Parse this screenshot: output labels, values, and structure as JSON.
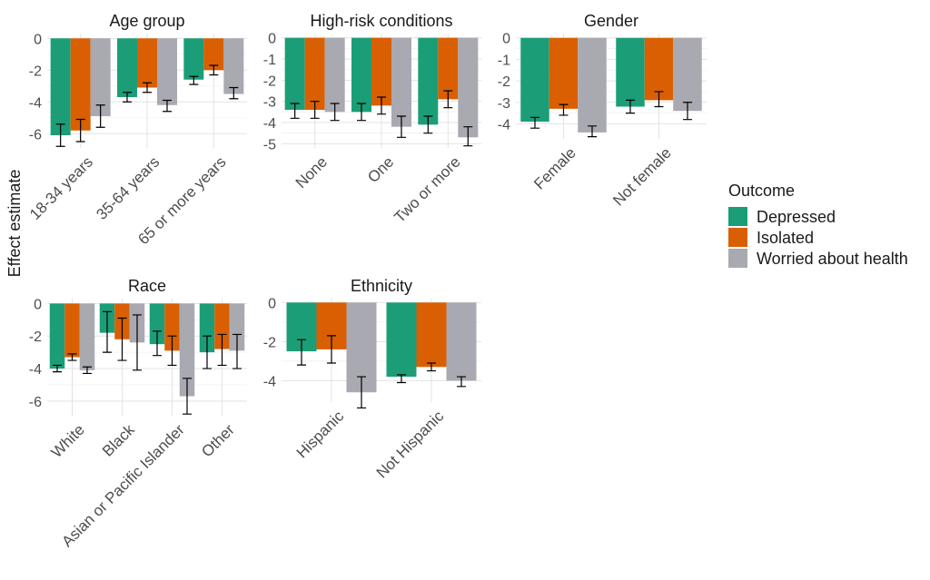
{
  "ylabel": "Effect estimate",
  "legend": {
    "title": "Outcome",
    "position": "right"
  },
  "colors": {
    "Depressed": "#1b9e77",
    "Isolated": "#d95f02",
    "Worried about health": "#a9a9b1"
  },
  "chart_data": [
    {
      "type": "bar",
      "title": "Age group",
      "categories": [
        "18-34 years",
        "35-64 years",
        "65 or more years"
      ],
      "ylim": [
        -6.9,
        0.3
      ],
      "yticks": [
        0,
        -2,
        -4,
        -6
      ],
      "series": [
        {
          "name": "Depressed",
          "values": [
            -6.1,
            -3.7,
            -2.6
          ],
          "err_low": [
            -6.8,
            -4.0,
            -2.9
          ],
          "err_high": [
            -5.4,
            -3.4,
            -2.4
          ]
        },
        {
          "name": "Isolated",
          "values": [
            -5.8,
            -3.1,
            -2.0
          ],
          "err_low": [
            -6.5,
            -3.4,
            -2.3
          ],
          "err_high": [
            -5.1,
            -2.8,
            -1.7
          ]
        },
        {
          "name": "Worried about health",
          "values": [
            -4.9,
            -4.2,
            -3.5
          ],
          "err_low": [
            -5.6,
            -4.6,
            -3.8
          ],
          "err_high": [
            -4.2,
            -3.9,
            -3.1
          ]
        }
      ]
    },
    {
      "type": "bar",
      "title": "High-risk conditions",
      "categories": [
        "None",
        "One",
        "Two or more"
      ],
      "ylim": [
        -5.2,
        0.2
      ],
      "yticks": [
        0,
        -1,
        -2,
        -3,
        -4,
        -5
      ],
      "series": [
        {
          "name": "Depressed",
          "values": [
            -3.4,
            -3.5,
            -4.1
          ],
          "err_low": [
            -3.8,
            -3.9,
            -4.5
          ],
          "err_high": [
            -3.1,
            -3.1,
            -3.7
          ]
        },
        {
          "name": "Isolated",
          "values": [
            -3.4,
            -3.2,
            -2.9
          ],
          "err_low": [
            -3.8,
            -3.6,
            -3.3
          ],
          "err_high": [
            -3.0,
            -2.8,
            -2.5
          ]
        },
        {
          "name": "Worried about health",
          "values": [
            -3.5,
            -4.2,
            -4.7
          ],
          "err_low": [
            -3.9,
            -4.7,
            -5.1
          ],
          "err_high": [
            -3.1,
            -3.7,
            -4.2
          ]
        }
      ]
    },
    {
      "type": "bar",
      "title": "Gender",
      "categories": [
        "Female",
        "Not female"
      ],
      "ylim": [
        -4.7,
        0.2
      ],
      "yticks": [
        0,
        -1,
        -2,
        -3,
        -4
      ],
      "series": [
        {
          "name": "Depressed",
          "values": [
            -3.9,
            -3.2
          ],
          "err_low": [
            -4.2,
            -3.5
          ],
          "err_high": [
            -3.7,
            -2.9
          ]
        },
        {
          "name": "Isolated",
          "values": [
            -3.3,
            -2.9
          ],
          "err_low": [
            -3.6,
            -3.2
          ],
          "err_high": [
            -3.1,
            -2.5
          ]
        },
        {
          "name": "Worried about health",
          "values": [
            -4.4,
            -3.4
          ],
          "err_low": [
            -4.6,
            -3.8
          ],
          "err_high": [
            -4.1,
            -3.0
          ]
        }
      ]
    },
    {
      "type": "bar",
      "title": "Race",
      "categories": [
        "White",
        "Black",
        "Asian or Pacific Islander",
        "Other"
      ],
      "ylim": [
        -6.9,
        0.3
      ],
      "yticks": [
        0,
        -2,
        -4,
        -6
      ],
      "series": [
        {
          "name": "Depressed",
          "values": [
            -4.0,
            -1.8,
            -2.5,
            -3.0
          ],
          "err_low": [
            -4.2,
            -3.0,
            -3.2,
            -4.0
          ],
          "err_high": [
            -3.8,
            -0.5,
            -1.7,
            -2.0
          ]
        },
        {
          "name": "Isolated",
          "values": [
            -3.3,
            -2.2,
            -2.9,
            -2.8
          ],
          "err_low": [
            -3.5,
            -3.5,
            -3.8,
            -3.8
          ],
          "err_high": [
            -3.1,
            -0.9,
            -2.0,
            -1.9
          ]
        },
        {
          "name": "Worried about health",
          "values": [
            -4.1,
            -2.4,
            -5.7,
            -2.9
          ],
          "err_low": [
            -4.3,
            -4.1,
            -6.8,
            -4.0
          ],
          "err_high": [
            -3.9,
            -0.7,
            -4.6,
            -1.9
          ]
        }
      ]
    },
    {
      "type": "bar",
      "title": "Ethnicity",
      "categories": [
        "Hispanic",
        "Not Hispanic"
      ],
      "ylim": [
        -5.1,
        0.2
      ],
      "yticks": [
        0,
        -2,
        -4
      ],
      "series": [
        {
          "name": "Depressed",
          "values": [
            -2.5,
            -3.8
          ],
          "err_low": [
            -3.2,
            -4.1
          ],
          "err_high": [
            -1.9,
            -3.7
          ]
        },
        {
          "name": "Isolated",
          "values": [
            -2.4,
            -3.3
          ],
          "err_low": [
            -3.1,
            -3.5
          ],
          "err_high": [
            -1.7,
            -3.1
          ]
        },
        {
          "name": "Worried about health",
          "values": [
            -4.6,
            -4.0
          ],
          "err_low": [
            -5.4,
            -4.3
          ],
          "err_high": [
            -3.8,
            -3.8
          ]
        }
      ]
    }
  ]
}
